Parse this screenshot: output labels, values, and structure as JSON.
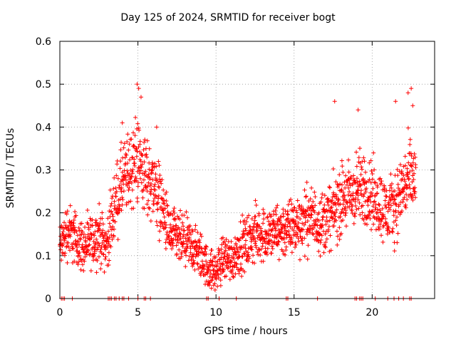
{
  "chart_data": {
    "type": "scatter",
    "title": "Day 125 of 2024, SRMTID for receiver bogt",
    "xlabel": "GPS time / hours",
    "ylabel": "SRMTID / TECUs",
    "xlim": [
      0,
      24
    ],
    "ylim": [
      0,
      0.6
    ],
    "xticks": [
      0,
      5,
      10,
      15,
      20
    ],
    "yticks": [
      0,
      0.1,
      0.2,
      0.3,
      0.4,
      0.5,
      0.6
    ],
    "grid": true,
    "marker": "+",
    "series_color": "#ff0000",
    "trend": {
      "x": [
        0,
        0.5,
        1,
        1.5,
        2,
        2.5,
        3,
        3.5,
        4,
        4.5,
        5,
        5.5,
        6,
        6.5,
        7,
        7.5,
        8,
        8.5,
        9,
        9.5,
        10,
        10.5,
        11,
        11.5,
        12,
        12.5,
        13,
        13.5,
        14,
        14.5,
        15,
        15.5,
        16,
        16.5,
        17,
        17.5,
        18,
        18.5,
        19,
        19.5,
        20,
        20.5,
        21,
        21.5,
        22,
        22.5,
        22.8
      ],
      "y": [
        0.12,
        0.16,
        0.14,
        0.12,
        0.13,
        0.15,
        0.12,
        0.22,
        0.27,
        0.3,
        0.33,
        0.28,
        0.27,
        0.22,
        0.15,
        0.14,
        0.13,
        0.12,
        0.1,
        0.07,
        0.06,
        0.1,
        0.09,
        0.12,
        0.13,
        0.15,
        0.15,
        0.15,
        0.16,
        0.16,
        0.17,
        0.18,
        0.19,
        0.18,
        0.18,
        0.2,
        0.23,
        0.24,
        0.25,
        0.26,
        0.24,
        0.22,
        0.2,
        0.22,
        0.26,
        0.28,
        0.27
      ]
    },
    "peaks": [
      {
        "x": 4.95,
        "y": 0.5
      },
      {
        "x": 5.05,
        "y": 0.49
      },
      {
        "x": 5.2,
        "y": 0.47
      },
      {
        "x": 17.6,
        "y": 0.46
      },
      {
        "x": 21.5,
        "y": 0.46
      },
      {
        "x": 22.5,
        "y": 0.49
      },
      {
        "x": 22.3,
        "y": 0.48
      },
      {
        "x": 4.0,
        "y": 0.41
      },
      {
        "x": 6.2,
        "y": 0.4
      },
      {
        "x": 19.1,
        "y": 0.44
      },
      {
        "x": 22.6,
        "y": 0.45
      }
    ],
    "zero_points_x": [
      0.1,
      0.2,
      0.3,
      0.8,
      3.1,
      3.2,
      3.3,
      3.5,
      3.6,
      3.8,
      4.0,
      4.1,
      4.4,
      5.0,
      5.4,
      5.5,
      5.8,
      9.4,
      9.5,
      10.2,
      11.3,
      14.5,
      14.6,
      16.5,
      18.9,
      19.0,
      19.2,
      19.3,
      19.4,
      20.2,
      21.0,
      21.4,
      21.7,
      22.0,
      22.4,
      22.5
    ]
  }
}
